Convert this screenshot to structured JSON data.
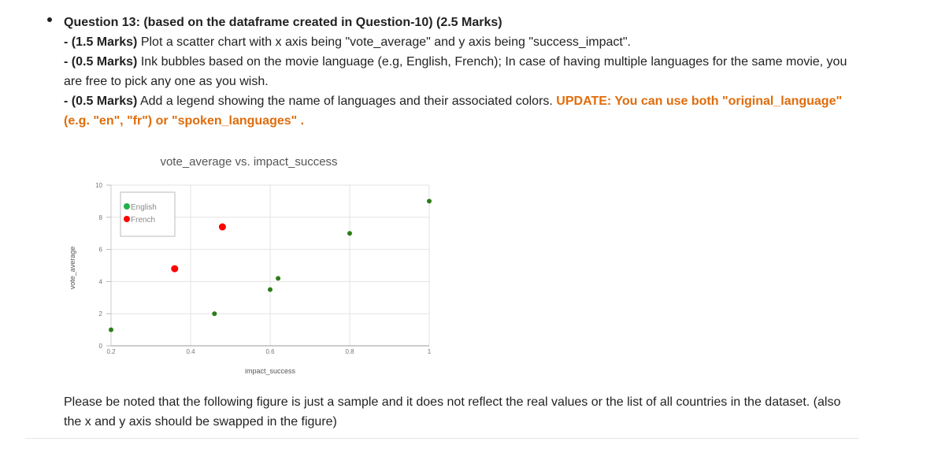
{
  "question": {
    "title": "Question 13: (based on the dataframe created in Question-10) (2.5 Marks)",
    "item1_marks": "- (1.5 Marks)",
    "item1_text": " Plot a scatter chart with x axis being \"vote_average\" and y axis being \"success_impact\".",
    "item2_marks": "- (0.5 Marks)",
    "item2_text": " Ink bubbles based on the movie language (e.g, English, French); In case of having multiple languages for the same movie, you are free to pick any one as you wish.",
    "item3_marks": "- (0.5 Marks)",
    "item3_text": " Add a legend showing the name of languages and their associated colors. ",
    "update_text": "UPDATE: You can use both \"original_language\" (e.g. \"en\", \"fr\") or \"spoken_languages\" ."
  },
  "note": "Please be noted that the following figure is just a sample and it does not reflect the real values or the list of all countries in the dataset. (also the x and y axis should be swapped in the figure)",
  "colors": {
    "english": "#2e7d1a",
    "french": "#ff0000",
    "english_legend": "#23b04b",
    "update": "#e06c0b"
  },
  "chart_data": {
    "type": "scatter",
    "title": "vote_average vs. impact_success",
    "xlabel": "impact_success",
    "ylabel": "vote_average",
    "xlim": [
      0.2,
      1
    ],
    "ylim": [
      0,
      10
    ],
    "xticks": [
      "0.2",
      "0.4",
      "0.6",
      "0.8",
      "1"
    ],
    "yticks": [
      "0",
      "2",
      "4",
      "6",
      "8",
      "10"
    ],
    "grid": true,
    "legend_position": "top-left",
    "series": [
      {
        "name": "English",
        "points": [
          [
            0.2,
            1
          ],
          [
            0.46,
            2
          ],
          [
            0.6,
            3.5
          ],
          [
            0.62,
            4.2
          ],
          [
            0.8,
            7
          ],
          [
            1.0,
            9
          ]
        ]
      },
      {
        "name": "French",
        "points": [
          [
            0.36,
            4.8
          ],
          [
            0.48,
            7.4
          ]
        ]
      }
    ]
  }
}
